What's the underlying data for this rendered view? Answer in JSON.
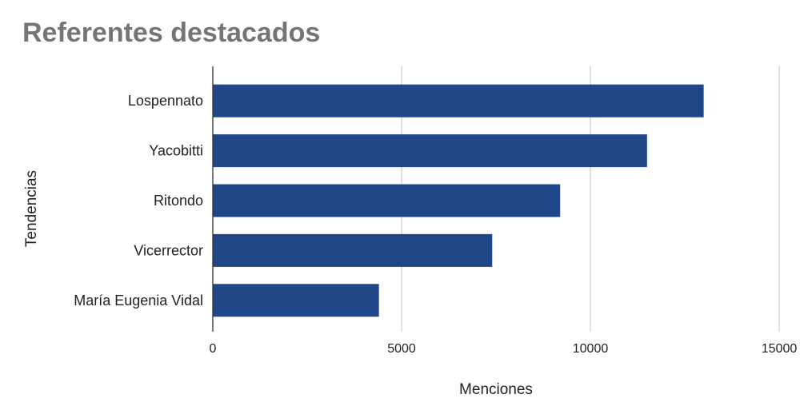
{
  "chart_data": {
    "type": "bar",
    "orientation": "horizontal",
    "title": "Referentes destacados",
    "xlabel": "Menciones",
    "ylabel": "Tendencias",
    "categories": [
      "Lospennato",
      "Yacobitti",
      "Ritondo",
      "Vicerrector",
      "María Eugenia Vidal"
    ],
    "values": [
      13000,
      11500,
      9200,
      7400,
      4400
    ],
    "xlim": [
      0,
      15000
    ],
    "xticks": [
      0,
      5000,
      10000,
      15000
    ],
    "xtick_labels": [
      "0",
      "5000",
      "10000",
      "15000"
    ],
    "grid": true,
    "legend": "none",
    "bar_color": "#1f4788",
    "grid_color": "#cccccc",
    "title_color": "#757575"
  }
}
